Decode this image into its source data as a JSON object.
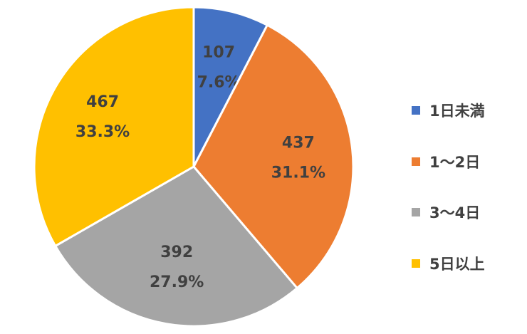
{
  "chart_data": {
    "type": "pie",
    "title": "",
    "legend_position": "right",
    "series": [
      {
        "name": "1日未満",
        "value": 107,
        "percent_label": "7.6%",
        "color": "#4472C4"
      },
      {
        "name": "1～2日",
        "value": 437,
        "percent_label": "31.1%",
        "color": "#ED7D31"
      },
      {
        "name": "3～4日",
        "value": 392,
        "percent_label": "27.9%",
        "color": "#A5A5A5"
      },
      {
        "name": "5日以上",
        "value": 467,
        "percent_label": "33.3%",
        "color": "#FFC000"
      }
    ]
  }
}
